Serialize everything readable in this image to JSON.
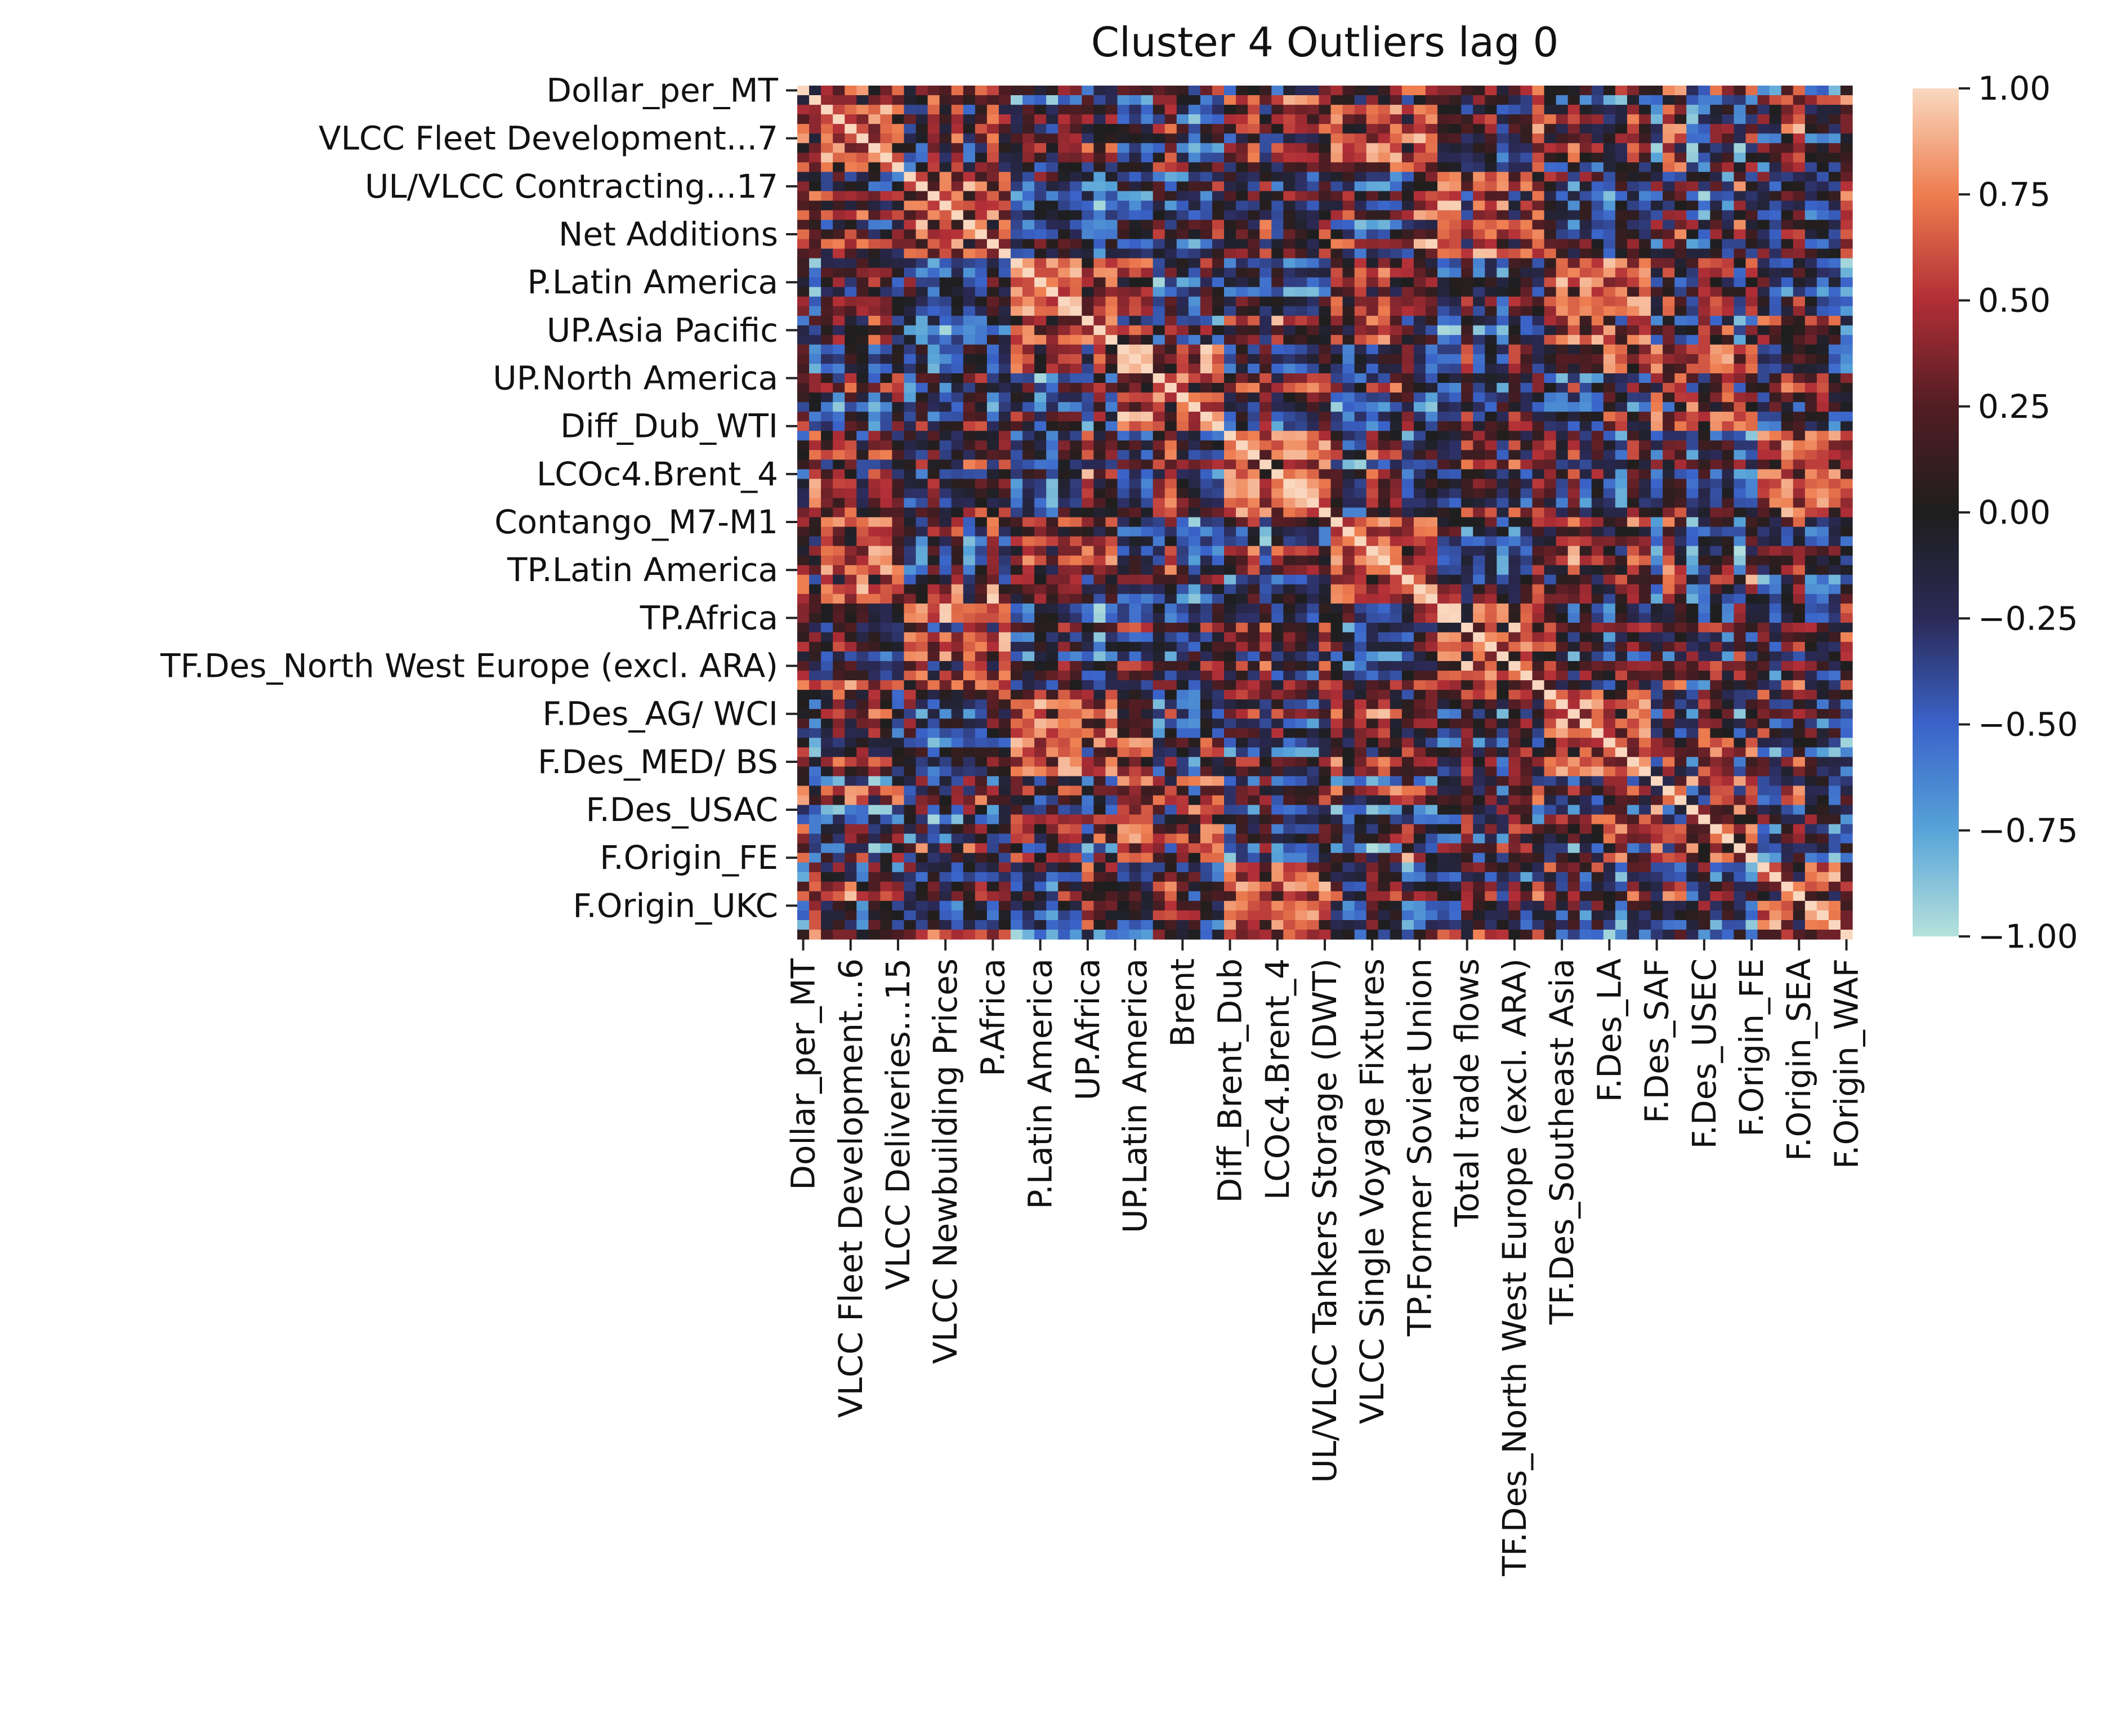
{
  "chart_data": {
    "type": "heatmap",
    "title": "Cluster 4 Outliers lag 0",
    "xlabel": "",
    "ylabel": "",
    "colormap": "icefire",
    "vmin": -1.0,
    "vmax": 1.0,
    "colorbar_ticks": [
      "1.00",
      "0.75",
      "0.50",
      "0.25",
      "0.00",
      "−0.25",
      "−0.50",
      "−0.75",
      "−1.00"
    ],
    "colorbar_values": [
      1.0,
      0.75,
      0.5,
      0.25,
      0.0,
      -0.25,
      -0.5,
      -0.75,
      -1.0
    ],
    "colorbar_colors": [
      "#f9d8bf",
      "#ee7d4f",
      "#b12e36",
      "#521d23",
      "#1e1e1e",
      "#2b2a57",
      "#3a63c9",
      "#57a3d8",
      "#b6e2dc"
    ],
    "y_tick_labels": [
      "Dollar_per_MT",
      "VLCC Fleet Development...7",
      "UL/VLCC Contracting...17",
      "Net Additions",
      "P.Latin America",
      "UP.Asia Pacific",
      "UP.North America",
      "Diff_Dub_WTI",
      "LCOc4.Brent_4",
      "Contango_M7-M1",
      "TP.Latin America",
      "TP.Africa",
      "TF.Des_North West Europe (excl. ARA)",
      "F.Des_AG/ WCI",
      "F.Des_MED/ BS",
      "F.Des_USAC",
      "F.Origin_FE",
      "F.Origin_UKC"
    ],
    "x_tick_labels": [
      "Dollar_per_MT",
      "VLCC Fleet Development...6",
      "VLCC Deliveries...15",
      "VLCC Newbuilding Prices",
      "P.Africa",
      "P.Latin America",
      "UP.Africa",
      "UP.Latin America",
      "Brent",
      "Diff_Brent_Dub",
      "LCOc4.Brent_4",
      "UL/VLCC Tankers Storage (DWT)",
      "VLCC Single Voyage Fixtures",
      "TP.Former Soviet Union",
      "Total trade flows",
      "TF.Des_North West Europe (excl. ARA)",
      "TF.Des_Southeast Asia",
      "F.Des_LA",
      "F.Des_SAF",
      "F.Des_USEC",
      "F.Origin_FE",
      "F.Origin_SEA",
      "F.Origin_WAF"
    ],
    "n_variables": 89
  }
}
